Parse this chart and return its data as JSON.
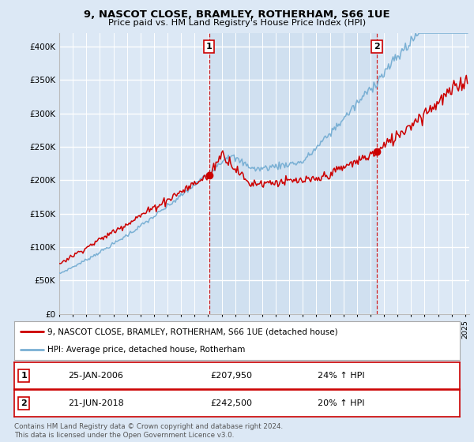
{
  "title": "9, NASCOT CLOSE, BRAMLEY, ROTHERHAM, S66 1UE",
  "subtitle": "Price paid vs. HM Land Registry's House Price Index (HPI)",
  "ylim": [
    0,
    420000
  ],
  "yticks": [
    0,
    50000,
    100000,
    150000,
    200000,
    250000,
    300000,
    350000,
    400000
  ],
  "ytick_labels": [
    "£0",
    "£50K",
    "£100K",
    "£150K",
    "£200K",
    "£250K",
    "£300K",
    "£350K",
    "£400K"
  ],
  "background_color": "#dce8f5",
  "plot_bg_color": "#dce8f5",
  "highlight_color": "#cce0f0",
  "grid_color": "#ffffff",
  "sale1_price": 207950,
  "sale2_price": 242500,
  "line1_color": "#cc0000",
  "line2_color": "#7ab0d4",
  "vline_color": "#cc0000",
  "footer": "Contains HM Land Registry data © Crown copyright and database right 2024.\nThis data is licensed under the Open Government Licence v3.0.",
  "legend1": "9, NASCOT CLOSE, BRAMLEY, ROTHERHAM, S66 1UE (detached house)",
  "legend2": "HPI: Average price, detached house, Rotherham"
}
